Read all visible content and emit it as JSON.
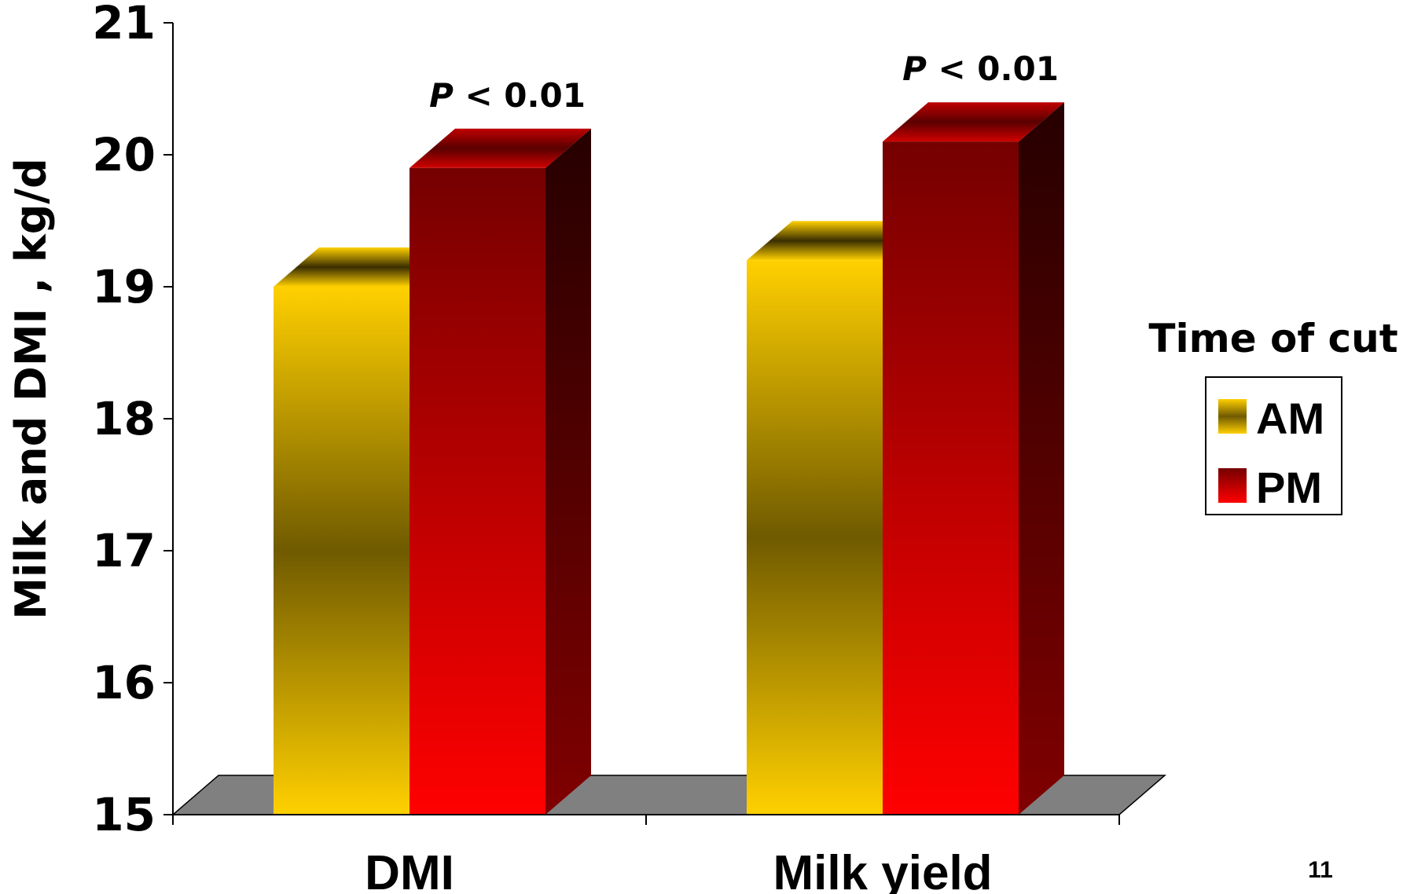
{
  "chart_data": {
    "type": "bar",
    "categories": [
      "DMI",
      "Milk yield"
    ],
    "series": [
      {
        "name": "AM",
        "values": [
          19.0,
          19.2
        ]
      },
      {
        "name": "PM",
        "values": [
          19.9,
          20.1
        ]
      }
    ],
    "ylabel": "Milk and DMI , kg/d",
    "xlabel": "",
    "ylim": [
      15,
      21
    ],
    "yticks": [
      "15",
      "16",
      "17",
      "18",
      "19",
      "20",
      "21"
    ],
    "annotations": [
      {
        "category": "DMI",
        "p_symbol": "P",
        "text": " < 0.01"
      },
      {
        "category": "Milk yield",
        "p_symbol": "P",
        "text": " < 0.01"
      }
    ],
    "legend": {
      "title": "Time of cut",
      "placement": "right"
    },
    "grid": false,
    "style": "3d",
    "colors": {
      "AM_light": "#ffd000",
      "AM_dark": "#705a00",
      "PM_light": "#ff0000",
      "PM_dark": "#750000",
      "floor": "#808080"
    }
  },
  "slide_number": "11"
}
